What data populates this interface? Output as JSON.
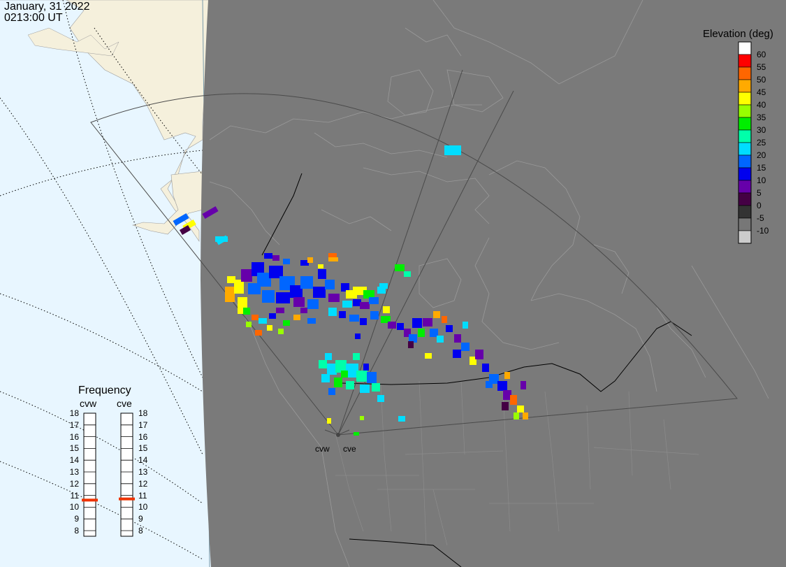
{
  "header": {
    "date": "January, 31 2022",
    "time": "0213:00 UT"
  },
  "colorbar": {
    "title": "Elevation (deg)",
    "entries": [
      {
        "label": "60",
        "color": "#ffffff"
      },
      {
        "label": "55",
        "color": "#ff0000"
      },
      {
        "label": "50",
        "color": "#ff6600"
      },
      {
        "label": "45",
        "color": "#ffaa00"
      },
      {
        "label": "40",
        "color": "#ffff00"
      },
      {
        "label": "35",
        "color": "#99ff00"
      },
      {
        "label": "30",
        "color": "#00ee00"
      },
      {
        "label": "25",
        "color": "#00ffaa"
      },
      {
        "label": "20",
        "color": "#00ddff"
      },
      {
        "label": "15",
        "color": "#0066ff"
      },
      {
        "label": "10",
        "color": "#0000ee"
      },
      {
        "label": "5",
        "color": "#6600aa"
      },
      {
        "label": "0",
        "color": "#440044"
      },
      {
        "label": "-5",
        "color": "#333333"
      },
      {
        "label": "-10",
        "color": "#777777"
      },
      {
        "label": "",
        "color": "#cccccc"
      }
    ]
  },
  "frequency": {
    "title": "Frequency",
    "radars": [
      "cvw",
      "cve"
    ],
    "ticks": [
      "18",
      "17",
      "16",
      "15",
      "14",
      "13",
      "12",
      "11",
      "10",
      "9",
      "8"
    ],
    "values_mhz": {
      "cvw": 10.6,
      "cve": 10.7
    }
  },
  "sites": [
    {
      "label": "cvw"
    },
    {
      "label": "cve"
    }
  ],
  "map": {
    "ocean_color": "#e8f6ff",
    "land_outside_color": "#f5f0dc",
    "night_color": "#7a7a7a",
    "coast_color": "#9a9a9a",
    "border_color": "#000000",
    "fov_color": "#4a4a4a"
  }
}
